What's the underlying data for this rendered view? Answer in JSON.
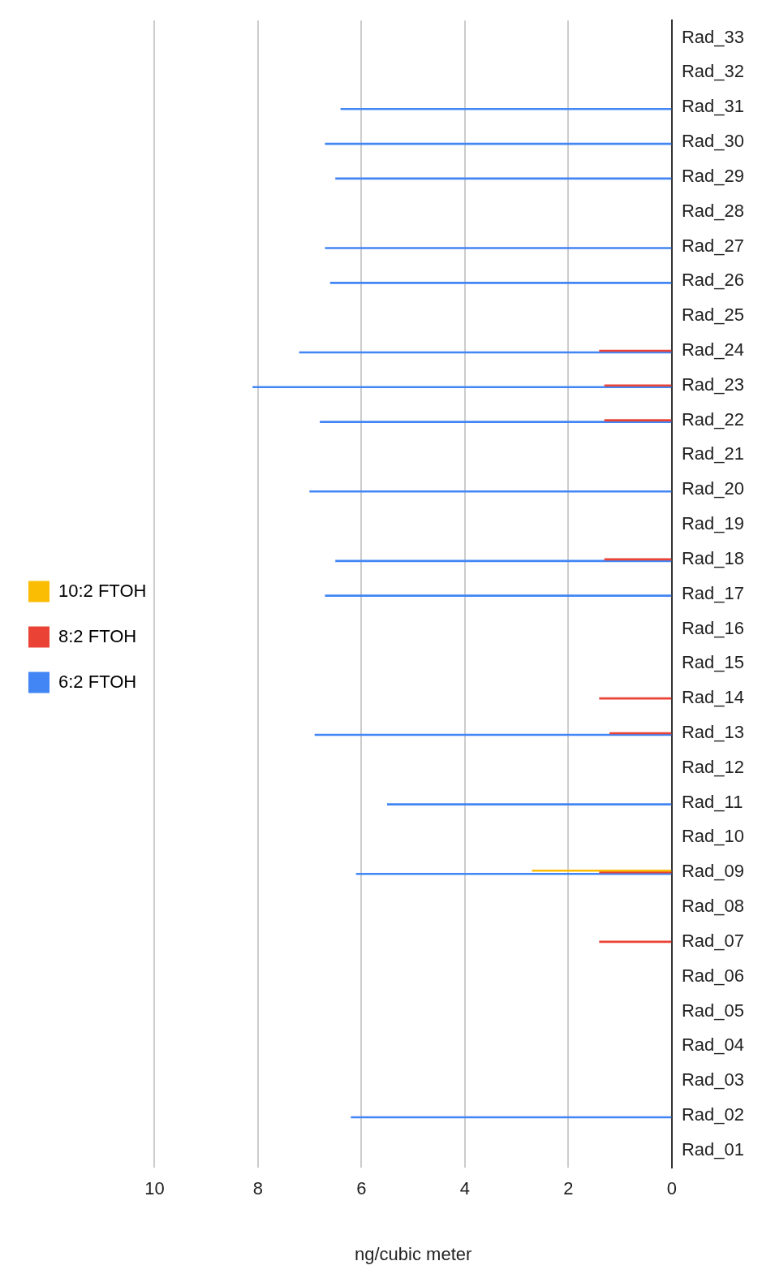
{
  "chart_data": {
    "type": "bar",
    "orientation": "horizontal",
    "categories": [
      "Rad_33",
      "Rad_32",
      "Rad_31",
      "Rad_30",
      "Rad_29",
      "Rad_28",
      "Rad_27",
      "Rad_26",
      "Rad_25",
      "Rad_24",
      "Rad_23",
      "Rad_22",
      "Rad_21",
      "Rad_20",
      "Rad_19",
      "Rad_18",
      "Rad_17",
      "Rad_16",
      "Rad_15",
      "Rad_14",
      "Rad_13",
      "Rad_12",
      "Rad_11",
      "Rad_10",
      "Rad_09",
      "Rad_08",
      "Rad_07",
      "Rad_06",
      "Rad_05",
      "Rad_04",
      "Rad_03",
      "Rad_02",
      "Rad_01"
    ],
    "series": [
      {
        "name": "10:2 FTOH",
        "color": "#fbbc04",
        "values": [
          null,
          null,
          null,
          null,
          null,
          null,
          null,
          null,
          null,
          null,
          null,
          null,
          null,
          null,
          null,
          null,
          null,
          null,
          null,
          null,
          null,
          null,
          null,
          null,
          2.7,
          null,
          null,
          null,
          null,
          null,
          null,
          null,
          null
        ]
      },
      {
        "name": "8:2 FTOH",
        "color": "#ea4335",
        "values": [
          null,
          null,
          null,
          null,
          null,
          null,
          null,
          null,
          null,
          1.4,
          1.3,
          1.3,
          null,
          null,
          null,
          1.3,
          null,
          null,
          null,
          1.4,
          1.2,
          null,
          null,
          null,
          1.4,
          null,
          1.4,
          null,
          null,
          null,
          null,
          null,
          null
        ]
      },
      {
        "name": "6:2 FTOH",
        "color": "#4285f4",
        "values": [
          null,
          null,
          6.4,
          6.7,
          6.5,
          null,
          6.7,
          6.6,
          null,
          7.2,
          8.1,
          6.8,
          null,
          7.0,
          null,
          6.5,
          6.7,
          null,
          null,
          null,
          6.9,
          null,
          5.5,
          null,
          6.1,
          null,
          null,
          null,
          null,
          null,
          null,
          6.2,
          null
        ]
      }
    ],
    "xlabel": "ng/cubic meter",
    "xlim": [
      10,
      0
    ],
    "xticks": [
      10,
      8,
      6,
      4,
      2,
      0
    ],
    "grid": "x",
    "legend": "left"
  }
}
